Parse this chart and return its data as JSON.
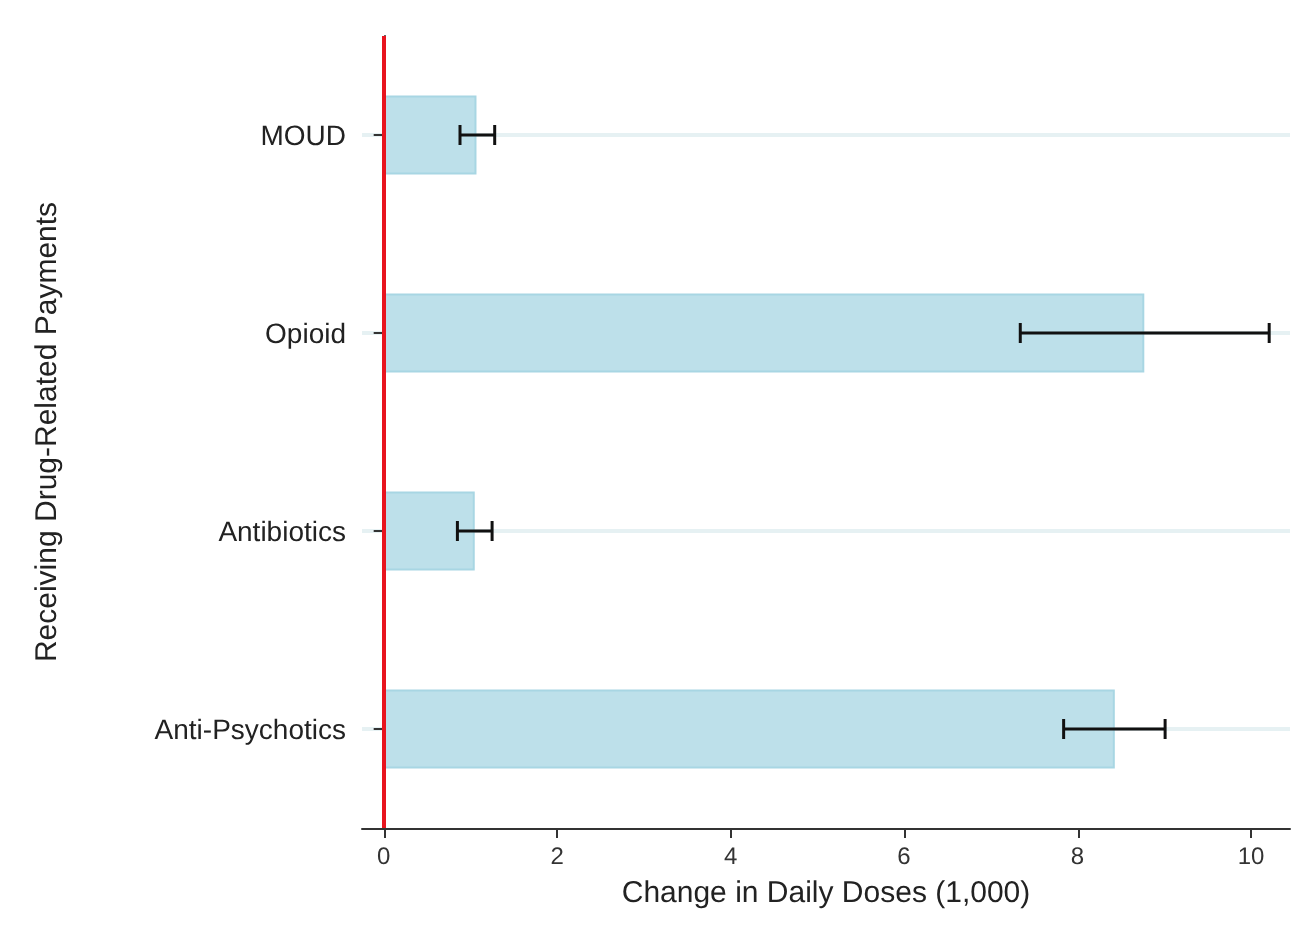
{
  "chart_data": {
    "type": "bar",
    "orientation": "horizontal",
    "categories": [
      "MOUD",
      "Opioid",
      "Antibiotics",
      "Anti-Psychotics"
    ],
    "values": [
      1.07,
      8.77,
      1.05,
      8.43
    ],
    "errors": [
      [
        0.88,
        1.28
      ],
      [
        7.34,
        10.21
      ],
      [
        0.85,
        1.25
      ],
      [
        7.84,
        9.01
      ]
    ],
    "color": "#bde0ea",
    "xlabel": "Change in Daily Doses (1,000)",
    "ylabel": "Receiving Drug-Related Payments",
    "xlim": [
      -0.25,
      10.45
    ],
    "xticks": [
      0,
      2,
      4,
      6,
      8,
      10
    ],
    "grid": "y",
    "ref_lines": [
      {
        "axis": "x",
        "value": 0,
        "color": "#e8141e"
      }
    ]
  }
}
